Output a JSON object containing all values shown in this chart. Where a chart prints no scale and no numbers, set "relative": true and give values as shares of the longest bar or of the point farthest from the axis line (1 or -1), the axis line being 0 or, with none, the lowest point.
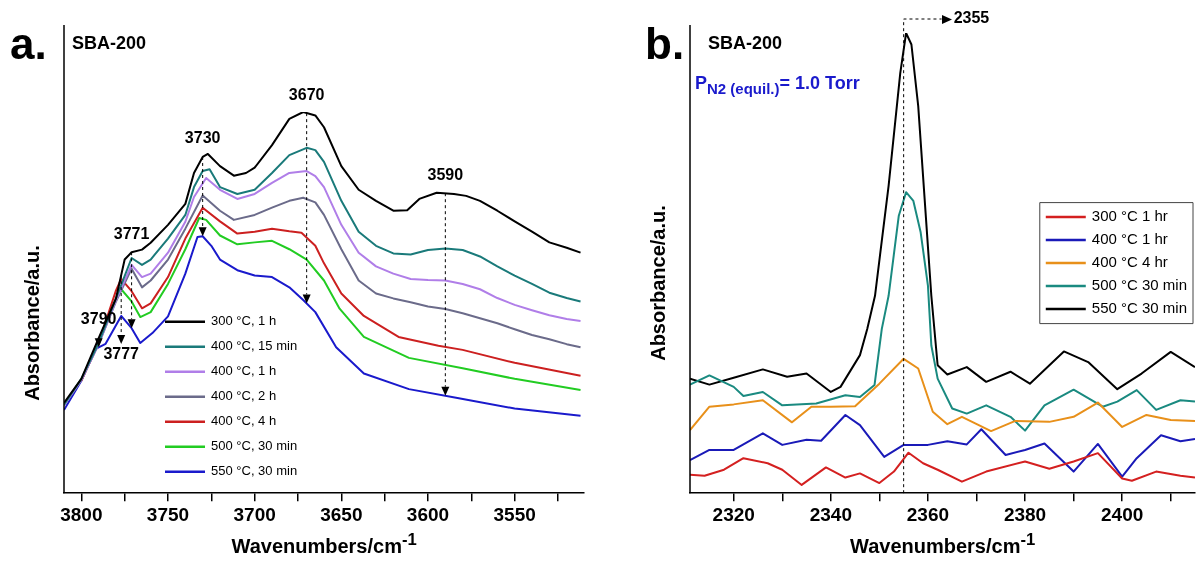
{
  "chart_data": [
    {
      "type": "line",
      "title": "a.",
      "subtitle": "SBA-200",
      "xlabel": "Wavenumbers/cm$^{-1}$",
      "ylabel": "Absorbance/a.u.",
      "relative": true,
      "legend": "bottom left",
      "xlim": [
        3810,
        3510
      ],
      "xticks": [
        3800,
        {
          "value": 3775,
          "label": null
        },
        3750,
        {
          "value": 3725,
          "label": null
        },
        3700,
        {
          "value": 3675,
          "label": null
        },
        3650,
        {
          "value": 3625,
          "label": null
        },
        3600,
        {
          "value": 3575,
          "label": null
        },
        3550,
        {
          "value": 3525,
          "label": null
        }
      ],
      "annotations": [
        {
          "text": "3790",
          "x": 3790,
          "y": 0.407
        },
        {
          "text": "3771",
          "x": 3771,
          "y": 0.632
        },
        {
          "text": "3730",
          "x": 3730,
          "y": 0.882
        },
        {
          "text": "3670",
          "x": 3670,
          "y": 0.997
        },
        {
          "text": "3590",
          "x": 3590,
          "y": 0.787
        },
        {
          "text": "3777",
          "x": 3777,
          "y": 0.465
        }
      ],
      "series": [
        {
          "name": "300 °C, 1 h",
          "color": "#000000",
          "x": [
            3810,
            3800,
            3790,
            3780,
            3775,
            3771,
            3765,
            3760,
            3750,
            3740,
            3735,
            3730,
            3727,
            3720,
            3712,
            3705,
            3700,
            3690,
            3680,
            3672,
            3665,
            3660,
            3650,
            3640,
            3630,
            3620,
            3612,
            3605,
            3595,
            3585,
            3578,
            3570,
            3560,
            3550,
            3540,
            3530,
            3520,
            3512
          ],
          "values": [
            0.237,
            0.3,
            0.407,
            0.511,
            0.613,
            0.632,
            0.639,
            0.657,
            0.704,
            0.759,
            0.84,
            0.882,
            0.89,
            0.858,
            0.833,
            0.84,
            0.854,
            0.913,
            0.982,
            1.0,
            0.991,
            0.96,
            0.858,
            0.796,
            0.767,
            0.741,
            0.742,
            0.772,
            0.788,
            0.785,
            0.78,
            0.767,
            0.741,
            0.713,
            0.686,
            0.658,
            0.644,
            0.631
          ]
        },
        {
          "name": "400 °C, 15 min",
          "color": "#1a7a7a",
          "x": [
            3810,
            3800,
            3790,
            3780,
            3771,
            3765,
            3760,
            3750,
            3740,
            3735,
            3730,
            3726,
            3720,
            3710,
            3700,
            3690,
            3680,
            3670,
            3665,
            3660,
            3650,
            3640,
            3630,
            3620,
            3610,
            3600,
            3590,
            3580,
            3570,
            3560,
            3550,
            3540,
            3530,
            3520,
            3512
          ],
          "values": [
            0.232,
            0.3,
            0.394,
            0.511,
            0.617,
            0.599,
            0.613,
            0.668,
            0.73,
            0.803,
            0.845,
            0.85,
            0.803,
            0.785,
            0.796,
            0.84,
            0.887,
            0.906,
            0.9,
            0.869,
            0.767,
            0.686,
            0.649,
            0.629,
            0.626,
            0.638,
            0.642,
            0.638,
            0.621,
            0.595,
            0.571,
            0.549,
            0.526,
            0.512,
            0.503
          ]
        },
        {
          "name": "400 °C, 1 h",
          "color": "#b07ee8",
          "x": [
            3810,
            3800,
            3790,
            3780,
            3771,
            3765,
            3760,
            3750,
            3740,
            3735,
            3728,
            3720,
            3710,
            3700,
            3690,
            3680,
            3670,
            3665,
            3660,
            3650,
            3640,
            3630,
            3620,
            3610,
            3600,
            3590,
            3580,
            3570,
            3560,
            3550,
            3540,
            3530,
            3520,
            3512
          ],
          "values": [
            0.23,
            0.297,
            0.391,
            0.506,
            0.599,
            0.567,
            0.576,
            0.631,
            0.712,
            0.777,
            0.827,
            0.796,
            0.772,
            0.785,
            0.814,
            0.84,
            0.845,
            0.832,
            0.803,
            0.704,
            0.631,
            0.595,
            0.576,
            0.562,
            0.559,
            0.558,
            0.549,
            0.535,
            0.512,
            0.494,
            0.48,
            0.467,
            0.457,
            0.452
          ]
        },
        {
          "name": "400 °C, 2 h",
          "color": "#6b6b8a",
          "x": [
            3810,
            3800,
            3790,
            3780,
            3771,
            3765,
            3760,
            3750,
            3740,
            3730,
            3720,
            3712,
            3700,
            3690,
            3680,
            3672,
            3665,
            3660,
            3650,
            3640,
            3630,
            3620,
            3610,
            3600,
            3590,
            3580,
            3570,
            3560,
            3550,
            3540,
            3530,
            3520,
            3512
          ],
          "values": [
            0.23,
            0.297,
            0.391,
            0.503,
            0.589,
            0.54,
            0.558,
            0.613,
            0.694,
            0.781,
            0.741,
            0.717,
            0.73,
            0.749,
            0.767,
            0.775,
            0.763,
            0.73,
            0.64,
            0.558,
            0.524,
            0.511,
            0.501,
            0.49,
            0.483,
            0.472,
            0.459,
            0.446,
            0.43,
            0.415,
            0.404,
            0.391,
            0.383
          ]
        },
        {
          "name": "400 °C, 4 h",
          "color": "#cc2020",
          "x": [
            3800,
            3790,
            3780,
            3777,
            3771,
            3765,
            3760,
            3750,
            3740,
            3730,
            3720,
            3710,
            3700,
            3690,
            3680,
            3673,
            3665,
            3660,
            3650,
            3637,
            3617,
            3594,
            3580,
            3550,
            3512
          ],
          "values": [
            0.295,
            0.394,
            0.532,
            0.562,
            0.53,
            0.485,
            0.498,
            0.567,
            0.668,
            0.749,
            0.713,
            0.681,
            0.686,
            0.694,
            0.687,
            0.683,
            0.649,
            0.603,
            0.524,
            0.465,
            0.41,
            0.387,
            0.376,
            0.342,
            0.308
          ]
        },
        {
          "name": "500 °C, 30 min",
          "color": "#22cc22",
          "x": [
            3780,
            3777,
            3771,
            3766,
            3760,
            3750,
            3740,
            3732,
            3728,
            3720,
            3710,
            3700,
            3690,
            3680,
            3670,
            3660,
            3651,
            3637,
            3611,
            3580,
            3550,
            3512
          ],
          "values": [
            0.511,
            0.535,
            0.503,
            0.462,
            0.475,
            0.549,
            0.64,
            0.722,
            0.717,
            0.676,
            0.653,
            0.658,
            0.662,
            0.64,
            0.613,
            0.558,
            0.484,
            0.41,
            0.355,
            0.328,
            0.3,
            0.271
          ]
        },
        {
          "name": "550 °C, 30 min",
          "color": "#1a1acc",
          "x": [
            3810,
            3800,
            3792,
            3786,
            3777,
            3771,
            3766,
            3759,
            3750,
            3740,
            3733,
            3730,
            3725,
            3720,
            3710,
            3700,
            3690,
            3680,
            3672,
            3665,
            3653,
            3637,
            3611,
            3583,
            3550,
            3512
          ],
          "values": [
            0.218,
            0.295,
            0.378,
            0.392,
            0.465,
            0.433,
            0.394,
            0.42,
            0.464,
            0.576,
            0.672,
            0.674,
            0.649,
            0.613,
            0.585,
            0.571,
            0.567,
            0.54,
            0.507,
            0.475,
            0.383,
            0.314,
            0.273,
            0.25,
            0.222,
            0.203
          ]
        }
      ]
    },
    {
      "type": "line",
      "title": "b.",
      "subtitle": "SBA-200",
      "xlabel": "Wavenumbers/cm$^{-1}$",
      "ylabel": "Absorbance/a.u.",
      "relative": true,
      "legend": "right",
      "xlim": [
        2311,
        2415
      ],
      "xticks": [
        2320,
        {
          "value": 2330,
          "label": null
        },
        2340,
        {
          "value": 2350,
          "label": null
        },
        2360,
        {
          "value": 2370,
          "label": null
        },
        2380,
        {
          "value": 2390,
          "label": null
        },
        2400,
        {
          "value": 2410,
          "label": null
        }
      ],
      "annotations": [
        "P$_{N2 (equil.)}$= 1.0 Torr"
      ],
      "ref_lines": [
        {
          "axis": "x",
          "value": 2355,
          "label": "2355",
          "line_style": "dashed",
          "color": "#000000"
        }
      ],
      "series": [
        {
          "name": "300 °C 1 hr",
          "color": "#d42020",
          "x": [
            2311,
            2314,
            2318,
            2322,
            2327,
            2330,
            2334,
            2339,
            2343,
            2346,
            2350,
            2353,
            2356,
            2359,
            2362,
            2367,
            2372,
            2380,
            2385,
            2390,
            2395,
            2400,
            2402,
            2407,
            2412,
            2415
          ],
          "values": [
            0.04,
            0.038,
            0.051,
            0.076,
            0.065,
            0.051,
            0.018,
            0.056,
            0.034,
            0.043,
            0.022,
            0.047,
            0.088,
            0.065,
            0.051,
            0.025,
            0.047,
            0.069,
            0.053,
            0.069,
            0.087,
            0.032,
            0.027,
            0.047,
            0.038,
            0.034
          ]
        },
        {
          "name": "400 °C 1 hr",
          "color": "#1a1ab8",
          "x": [
            2311,
            2315,
            2320,
            2326,
            2330,
            2335,
            2338,
            2343,
            2346,
            2351,
            2355,
            2360,
            2364,
            2368,
            2371,
            2376,
            2380,
            2384,
            2390,
            2395,
            2400,
            2403,
            2408,
            2412,
            2415
          ],
          "values": [
            0.072,
            0.094,
            0.094,
            0.13,
            0.105,
            0.116,
            0.114,
            0.17,
            0.148,
            0.079,
            0.105,
            0.105,
            0.113,
            0.106,
            0.139,
            0.083,
            0.094,
            0.108,
            0.047,
            0.107,
            0.036,
            0.076,
            0.126,
            0.113,
            0.118
          ]
        },
        {
          "name": "400 °C 4 hr",
          "color": "#e8901a",
          "x": [
            2311,
            2315,
            2320,
            2326,
            2332,
            2336,
            2340,
            2345,
            2350,
            2355,
            2358,
            2361,
            2364,
            2367,
            2373,
            2378,
            2385,
            2390,
            2395,
            2400,
            2405,
            2410,
            2415
          ],
          "values": [
            0.137,
            0.188,
            0.193,
            0.202,
            0.154,
            0.188,
            0.188,
            0.189,
            0.238,
            0.292,
            0.271,
            0.177,
            0.15,
            0.166,
            0.135,
            0.157,
            0.155,
            0.166,
            0.197,
            0.144,
            0.17,
            0.159,
            0.157
          ]
        },
        {
          "name": "500 °C 30 min",
          "color": "#1a8a80",
          "x": [
            2311,
            2315,
            2320,
            2322,
            2326,
            2330,
            2337,
            2343,
            2346,
            2349,
            2350.5,
            2351.9,
            2354,
            2355.5,
            2357,
            2358.5,
            2360,
            2360.7,
            2362,
            2365,
            2368,
            2372,
            2377,
            2380,
            2384,
            2390,
            2396,
            2399,
            2403,
            2407,
            2412,
            2415
          ],
          "values": [
            0.236,
            0.256,
            0.231,
            0.211,
            0.22,
            0.191,
            0.195,
            0.213,
            0.209,
            0.235,
            0.357,
            0.429,
            0.603,
            0.654,
            0.635,
            0.567,
            0.451,
            0.321,
            0.249,
            0.184,
            0.173,
            0.191,
            0.166,
            0.136,
            0.191,
            0.225,
            0.188,
            0.199,
            0.224,
            0.181,
            0.202,
            0.199
          ]
        },
        {
          "name": "550 °C 30 min",
          "color": "#000000",
          "x": [
            2311,
            2315,
            2320,
            2326,
            2331,
            2335,
            2340,
            2342,
            2346,
            2347.5,
            2349.1,
            2351.9,
            2354.3,
            2355.5,
            2356.6,
            2358,
            2360.7,
            2362,
            2364,
            2368,
            2372,
            2377,
            2381,
            2388,
            2393,
            2399,
            2404,
            2410,
            2415
          ],
          "values": [
            0.249,
            0.236,
            0.251,
            0.269,
            0.253,
            0.26,
            0.22,
            0.231,
            0.3,
            0.357,
            0.429,
            0.668,
            0.913,
            1.0,
            0.975,
            0.841,
            0.429,
            0.278,
            0.258,
            0.274,
            0.242,
            0.264,
            0.238,
            0.308,
            0.285,
            0.226,
            0.26,
            0.307,
            0.274
          ]
        }
      ]
    }
  ]
}
